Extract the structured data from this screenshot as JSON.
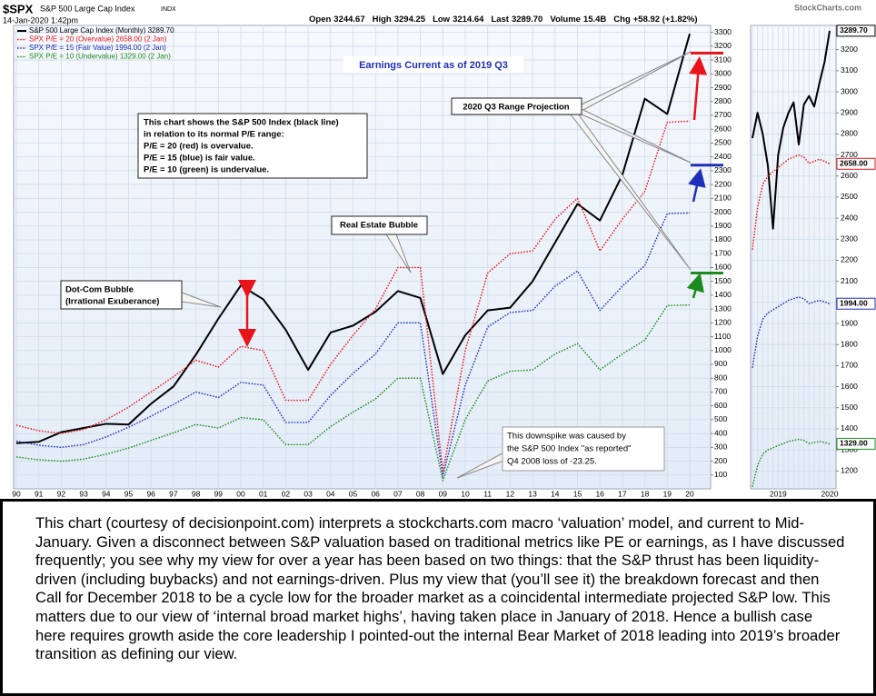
{
  "header": {
    "symbol": "$SPX",
    "name": "S&P 500 Large Cap Index",
    "exchange": "INDX",
    "datetime": "14-Jan-2020 1:42pm",
    "logo": "StockCharts.com",
    "quote": [
      {
        "label": "Open",
        "value": "3244.67"
      },
      {
        "label": "High",
        "value": "3294.25"
      },
      {
        "label": "Low",
        "value": "3214.64"
      },
      {
        "label": "Last",
        "value": "3289.70"
      },
      {
        "label": "Volume",
        "value": "15.4B"
      },
      {
        "label": "Chg",
        "value": "+58.92 (+1.82%)"
      }
    ]
  },
  "chart_data": [
    {
      "type": "line",
      "grid": true,
      "legend": "top-left",
      "categories": [
        "90",
        "91",
        "92",
        "93",
        "94",
        "95",
        "96",
        "97",
        "98",
        "99",
        "00",
        "01",
        "02",
        "03",
        "04",
        "05",
        "06",
        "07",
        "08",
        "09",
        "10",
        "11",
        "12",
        "13",
        "14",
        "15",
        "16",
        "17",
        "18",
        "19",
        "20"
      ],
      "ylim": [
        0,
        3350
      ],
      "yticks": [
        100,
        200,
        300,
        400,
        500,
        600,
        700,
        800,
        900,
        1000,
        1100,
        1200,
        1300,
        1400,
        1500,
        1600,
        1700,
        1800,
        1900,
        2000,
        2100,
        2200,
        2300,
        2400,
        2500,
        2600,
        2700,
        2800,
        2900,
        3000,
        3100,
        3200,
        3300
      ],
      "series": [
        {
          "name": "S&P 500 Large Cap Index (Monthly) 3289.70",
          "color": "#000000",
          "line_style": "solid",
          "values": [
            330,
            340,
            410,
            440,
            470,
            465,
            615,
            740,
            970,
            1230,
            1470,
            1370,
            1150,
            860,
            1130,
            1180,
            1280,
            1430,
            1380,
            830,
            1110,
            1290,
            1310,
            1500,
            1780,
            2060,
            1940,
            2270,
            2820,
            2710,
            3289.7
          ]
        },
        {
          "name": "SPX P/E = 20 (Overvalue) 2658.00 (2 Jan)",
          "color": "#e8141a",
          "line_style": "dotted",
          "values": [
            460,
            420,
            400,
            430,
            500,
            590,
            700,
            810,
            930,
            880,
            1030,
            1000,
            640,
            640,
            900,
            1110,
            1300,
            1600,
            1600,
            120,
            1000,
            1560,
            1700,
            1720,
            1950,
            2100,
            1720,
            1950,
            2150,
            2650,
            2658
          ]
        },
        {
          "name": "SPX P/E = 15 (Fair Value) 1994.00 (2 Jan)",
          "color": "#1f2fb8",
          "line_style": "dotted",
          "values": [
            345,
            315,
            300,
            320,
            375,
            445,
            525,
            610,
            700,
            660,
            770,
            750,
            480,
            480,
            675,
            835,
            975,
            1200,
            1200,
            90,
            750,
            1170,
            1275,
            1290,
            1465,
            1575,
            1290,
            1465,
            1615,
            1990,
            1994
          ]
        },
        {
          "name": "SPX P/E = 10 (Undervalue) 1329.00 (2 Jan)",
          "color": "#1d8a1d",
          "line_style": "dotted",
          "values": [
            230,
            210,
            200,
            215,
            250,
            295,
            350,
            405,
            465,
            440,
            515,
            500,
            320,
            320,
            450,
            555,
            650,
            800,
            800,
            60,
            500,
            780,
            850,
            860,
            975,
            1050,
            860,
            975,
            1075,
            1325,
            1329
          ]
        }
      ],
      "projections": [
        {
          "value": 3150,
          "color": "#e8141a"
        },
        {
          "value": 2340,
          "color": "#1f2fb8"
        },
        {
          "value": 1560,
          "color": "#1d8a1d"
        }
      ],
      "annotations": [
        [
          "Earnings Current as of 2019 Q3"
        ],
        [
          "2020 Q3 Range Projection"
        ],
        [
          "This chart shows the S&P 500 Index (black line)",
          "in relation to its normal P/E range:",
          "P/E = 20 (red) is overvalue.",
          "P/E = 15 (blue) is fair value.",
          "P/E = 10 (green) is undervalue."
        ],
        [
          "Real Estate Bubble"
        ],
        [
          "Dot-Com Bubble",
          "(Irrational Exuberance)"
        ],
        [
          "This downspike was caused by",
          "the S&P 500 Index \"as reported\"",
          "Q4 2008 loss of -23.25."
        ]
      ]
    },
    {
      "type": "line",
      "grid": true,
      "categories": [
        null,
        null,
        null,
        null,
        null,
        "2019",
        null,
        null,
        null,
        null,
        null,
        null,
        null,
        null,
        null,
        "2020"
      ],
      "ylim": [
        1115,
        3315
      ],
      "yticks": [
        1200,
        1300,
        1400,
        1500,
        1600,
        1700,
        1800,
        1900,
        2000,
        2100,
        2200,
        2300,
        2400,
        2500,
        2600,
        2700,
        2800,
        2900,
        3000,
        3100,
        3200
      ],
      "series": [
        {
          "color": "#000000",
          "line_style": "solid",
          "values": [
            2780,
            2900,
            2800,
            2650,
            2350,
            2700,
            2830,
            2900,
            2950,
            2750,
            2940,
            2980,
            2930,
            3040,
            3140,
            3289.7
          ],
          "value_labels": [
            null,
            null,
            null,
            null,
            null,
            null,
            null,
            null,
            null,
            null,
            null,
            null,
            null,
            null,
            null,
            "3289.70"
          ]
        },
        {
          "color": "#e8141a",
          "line_style": "dotted",
          "values": [
            2250,
            2450,
            2560,
            2600,
            2620,
            2640,
            2660,
            2680,
            2690,
            2700,
            2690,
            2660,
            2670,
            2680,
            2670,
            2658
          ],
          "value_labels": [
            null,
            null,
            null,
            null,
            null,
            null,
            null,
            null,
            null,
            null,
            null,
            null,
            null,
            null,
            null,
            "2658.00"
          ]
        },
        {
          "color": "#1f2fb8",
          "line_style": "dotted",
          "values": [
            1690,
            1840,
            1920,
            1950,
            1965,
            1980,
            1995,
            2010,
            2018,
            2025,
            2018,
            1995,
            2003,
            2010,
            2003,
            1994
          ],
          "value_labels": [
            null,
            null,
            null,
            null,
            null,
            null,
            null,
            null,
            null,
            null,
            null,
            null,
            null,
            null,
            null,
            "1994.00"
          ]
        },
        {
          "color": "#1d8a1d",
          "line_style": "dotted",
          "values": [
            1125,
            1225,
            1280,
            1300,
            1310,
            1320,
            1330,
            1340,
            1345,
            1350,
            1345,
            1330,
            1335,
            1340,
            1335,
            1329
          ],
          "value_labels": [
            null,
            null,
            null,
            null,
            null,
            null,
            null,
            null,
            null,
            null,
            null,
            null,
            null,
            null,
            null,
            "1329.00"
          ]
        }
      ]
    }
  ],
  "caption": "This chart (courtesy of decisionpoint.com) interprets a stockcharts.com macro ‘valuation’ model, and current to Mid-January. Given a disconnect between S&P valuation based on traditional metrics like PE or earnings, as I have discussed frequently; you see why my view for over a year has been based on two things: that the S&P thrust has been liquidity-driven (including buybacks) and not earnings-driven. Plus my view that (you’ll see it) the breakdown forecast and then Call for December 2018 to be a cycle low for the broader market as a coincidental intermediate projected S&P low. This matters due to our view of ‘internal broad market highs’, having taken place in January of 2018. Hence a bullish case here requires growth aside the core leadership I pointed-out the internal Bear Market of 2018 leading into 2019’s broader transition as defining our view."
}
